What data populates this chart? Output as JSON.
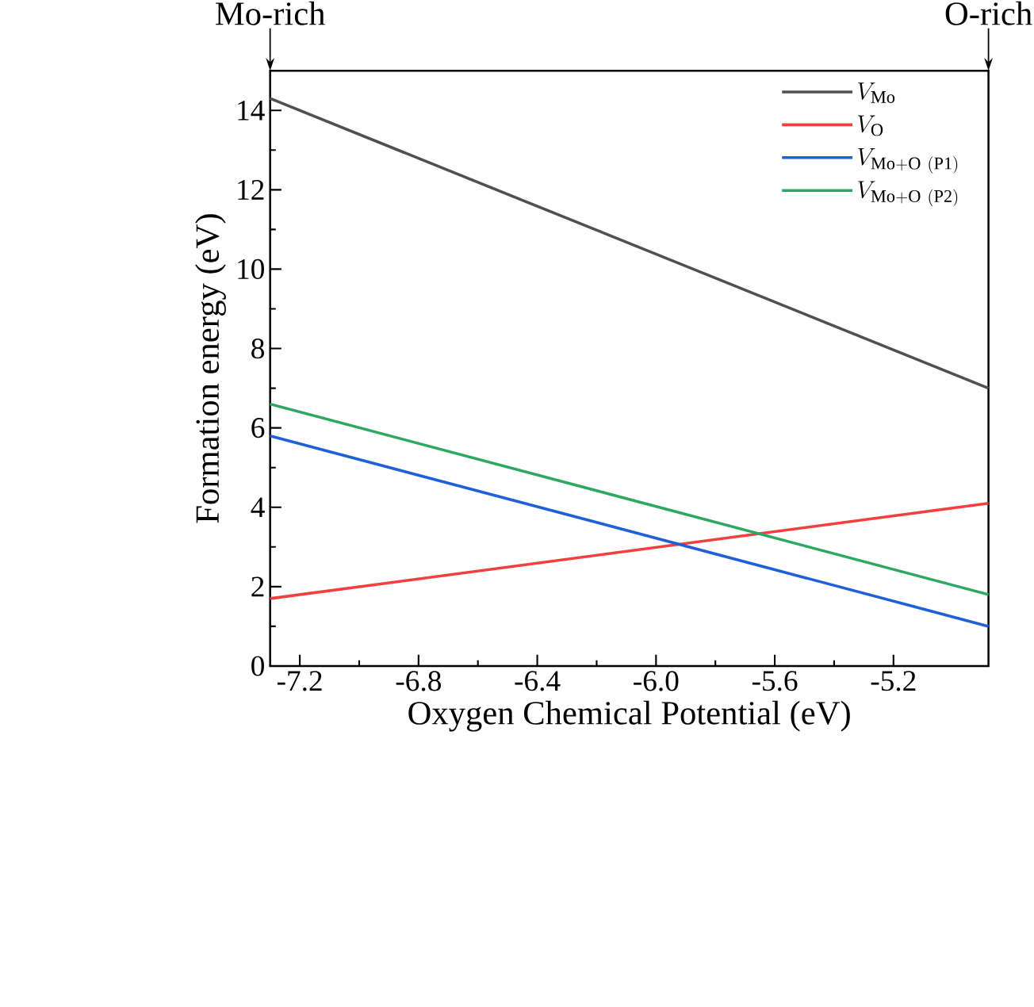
{
  "chart_data": {
    "type": "line",
    "xlabel": "Oxygen Chemical Potential (eV)",
    "ylabel": "Formation energy (eV)",
    "x": [
      -7.3,
      -4.88
    ],
    "series": [
      {
        "name": "V_{\\mathrm{Mo}}",
        "color": "#505050",
        "values": [
          14.3,
          7.0
        ]
      },
      {
        "name": "V_{\\mathrm{O}}",
        "color": "#f04040",
        "values": [
          1.7,
          4.1
        ]
      },
      {
        "name": "V_{\\mathrm{Mo+O\\ (P1)}}",
        "color": "#1f5fd8",
        "values": [
          5.8,
          1.0
        ]
      },
      {
        "name": "V_{\\mathrm{Mo+O\\ (P2)}}",
        "color": "#2ca862",
        "values": [
          6.6,
          1.8
        ]
      }
    ],
    "xlim": [
      -7.3,
      -4.88
    ],
    "ylim": [
      0,
      15
    ],
    "xticks": [
      -7.2,
      -6.8,
      -6.4,
      {
        "value": -6.0,
        "label": "-6.0"
      },
      -5.6,
      -5.2
    ],
    "yticks": [
      0,
      2,
      4,
      6,
      8,
      10,
      12,
      14
    ],
    "annotations": [
      "Mo-rich",
      "O-rich"
    ],
    "legend": "top right",
    "grid": false,
    "marker": "none",
    "line_style": "solid"
  }
}
